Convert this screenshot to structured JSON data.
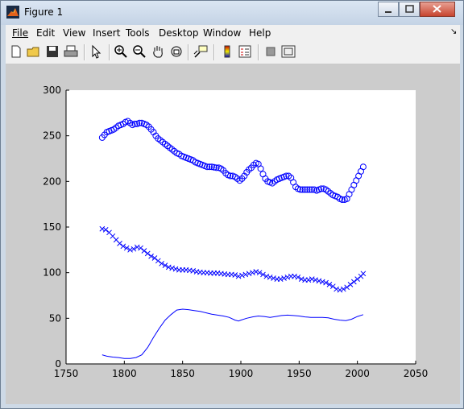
{
  "window": {
    "title": "Figure 1",
    "buttons": [
      "minimize",
      "maximize",
      "close"
    ]
  },
  "menu": [
    {
      "label": "File"
    },
    {
      "label": "Edit"
    },
    {
      "label": "View"
    },
    {
      "label": "Insert"
    },
    {
      "label": "Tools"
    },
    {
      "label": "Desktop"
    },
    {
      "label": "Window"
    },
    {
      "label": "Help"
    }
  ],
  "toolbar": {
    "icons": [
      "new-figure-icon",
      "open-file-icon",
      "save-icon",
      "print-icon",
      "edit-plot-icon",
      "zoom-in-icon",
      "zoom-out-icon",
      "pan-icon",
      "rotate-3d-icon",
      "data-cursor-icon",
      "colorbar-icon",
      "legend-icon",
      "hide-plot-tools-icon",
      "show-plot-tools-icon"
    ]
  },
  "colors": {
    "series": "#0000ff",
    "figure_bg": "#cccccc",
    "axes_bg": "#ffffff"
  },
  "chart_data": {
    "type": "line",
    "title": "",
    "xlabel": "",
    "ylabel": "",
    "xlim": [
      1750,
      2050
    ],
    "ylim": [
      0,
      300
    ],
    "xticks": [
      1750,
      1800,
      1850,
      1900,
      1950,
      2000,
      2050
    ],
    "yticks": [
      0,
      50,
      100,
      150,
      200,
      250,
      300
    ],
    "grid": false,
    "legend": "none",
    "series": [
      {
        "marker": "none",
        "line": "solid",
        "x": [
          1781,
          1785,
          1790,
          1795,
          1800,
          1805,
          1810,
          1815,
          1820,
          1825,
          1830,
          1835,
          1840,
          1845,
          1850,
          1855,
          1860,
          1865,
          1870,
          1875,
          1880,
          1885,
          1890,
          1895,
          1898,
          1900,
          1905,
          1910,
          1915,
          1920,
          1925,
          1930,
          1935,
          1940,
          1945,
          1950,
          1955,
          1960,
          1965,
          1970,
          1975,
          1980,
          1985,
          1990,
          1995,
          2000,
          2005
        ],
        "y": [
          10,
          8.5,
          7.5,
          7,
          6,
          6,
          7,
          10,
          18,
          29,
          39,
          48,
          54,
          59,
          60,
          59.5,
          58.5,
          57.5,
          56,
          54.5,
          53.5,
          52.5,
          51,
          48,
          47,
          48,
          50,
          51.5,
          52.5,
          52,
          51,
          52,
          53,
          53.5,
          53,
          52.5,
          51.5,
          51,
          51,
          51,
          50.5,
          49,
          48,
          47.5,
          49,
          52,
          54
        ]
      },
      {
        "marker": "x",
        "line": "none",
        "x": [
          1781,
          1784,
          1787,
          1790,
          1793,
          1796,
          1799,
          1802,
          1805,
          1808,
          1811,
          1814,
          1817,
          1820,
          1823,
          1826,
          1829,
          1832,
          1835,
          1838,
          1841,
          1844,
          1847,
          1850,
          1853,
          1856,
          1859,
          1862,
          1865,
          1868,
          1871,
          1874,
          1877,
          1880,
          1883,
          1886,
          1889,
          1892,
          1895,
          1898,
          1901,
          1904,
          1907,
          1910,
          1913,
          1916,
          1919,
          1922,
          1925,
          1928,
          1931,
          1934,
          1937,
          1940,
          1943,
          1946,
          1949,
          1952,
          1955,
          1958,
          1961,
          1964,
          1967,
          1970,
          1973,
          1976,
          1979,
          1982,
          1985,
          1988,
          1991,
          1994,
          1997,
          2000,
          2003,
          2005
        ],
        "y": [
          148,
          147,
          144,
          140,
          136,
          132,
          129,
          127,
          125,
          126,
          128,
          127,
          124,
          121,
          118,
          116,
          113,
          110,
          108,
          106,
          105,
          104,
          103,
          103,
          103,
          102.5,
          102,
          101,
          100.5,
          100,
          100,
          99.5,
          99.5,
          99.5,
          99,
          98.5,
          98,
          98,
          97.5,
          96,
          97,
          98,
          99,
          100,
          101,
          100,
          98,
          96,
          95,
          94,
          93,
          93,
          94,
          95,
          96,
          96,
          95,
          93,
          92,
          92,
          93,
          92,
          91,
          90,
          89,
          87,
          85,
          82,
          81,
          82,
          84,
          87,
          90,
          93,
          96,
          99
        ]
      },
      {
        "marker": "o",
        "line": "none",
        "x": [
          1781,
          1783,
          1785,
          1787,
          1789,
          1791,
          1793,
          1795,
          1797,
          1799,
          1801,
          1803,
          1805,
          1807,
          1809,
          1811,
          1813,
          1815,
          1817,
          1819,
          1821,
          1823,
          1825,
          1827,
          1829,
          1831,
          1833,
          1835,
          1837,
          1839,
          1841,
          1843,
          1845,
          1847,
          1849,
          1851,
          1853,
          1855,
          1857,
          1859,
          1861,
          1863,
          1865,
          1867,
          1869,
          1871,
          1873,
          1875,
          1877,
          1879,
          1881,
          1883,
          1885,
          1887,
          1889,
          1891,
          1893,
          1895,
          1897,
          1899,
          1901,
          1903,
          1905,
          1907,
          1909,
          1911,
          1913,
          1915,
          1917,
          1919,
          1921,
          1923,
          1925,
          1927,
          1929,
          1931,
          1933,
          1935,
          1937,
          1939,
          1941,
          1943,
          1945,
          1947,
          1949,
          1951,
          1953,
          1955,
          1957,
          1959,
          1961,
          1963,
          1965,
          1967,
          1969,
          1971,
          1973,
          1975,
          1977,
          1979,
          1981,
          1983,
          1985,
          1987,
          1989,
          1991,
          1993,
          1995,
          1997,
          1999,
          2001,
          2003,
          2005
        ],
        "y": [
          248,
          251,
          254,
          255,
          256,
          257,
          259,
          261,
          262,
          263,
          265,
          266,
          264,
          262,
          263,
          263,
          264,
          264,
          263,
          262,
          260,
          257,
          254,
          250,
          247,
          245,
          243,
          241,
          239,
          237,
          235,
          233,
          231,
          230,
          228,
          227,
          226,
          225,
          224,
          223,
          221,
          220,
          219,
          218,
          217,
          216,
          216,
          216,
          215.5,
          215,
          215,
          214,
          212,
          209,
          207,
          206,
          206,
          205,
          203,
          201,
          203,
          206,
          210,
          213,
          215,
          218,
          220,
          219,
          214,
          208,
          203,
          200,
          199,
          198,
          200,
          202,
          203,
          204,
          205,
          206,
          206,
          204,
          199,
          194,
          192,
          191,
          191,
          191,
          191,
          191,
          191,
          191,
          190,
          191,
          192,
          192,
          191,
          189,
          187,
          185,
          184,
          183,
          181,
          180,
          180,
          181,
          186,
          191,
          196,
          201,
          206,
          211,
          216
        ]
      }
    ]
  }
}
